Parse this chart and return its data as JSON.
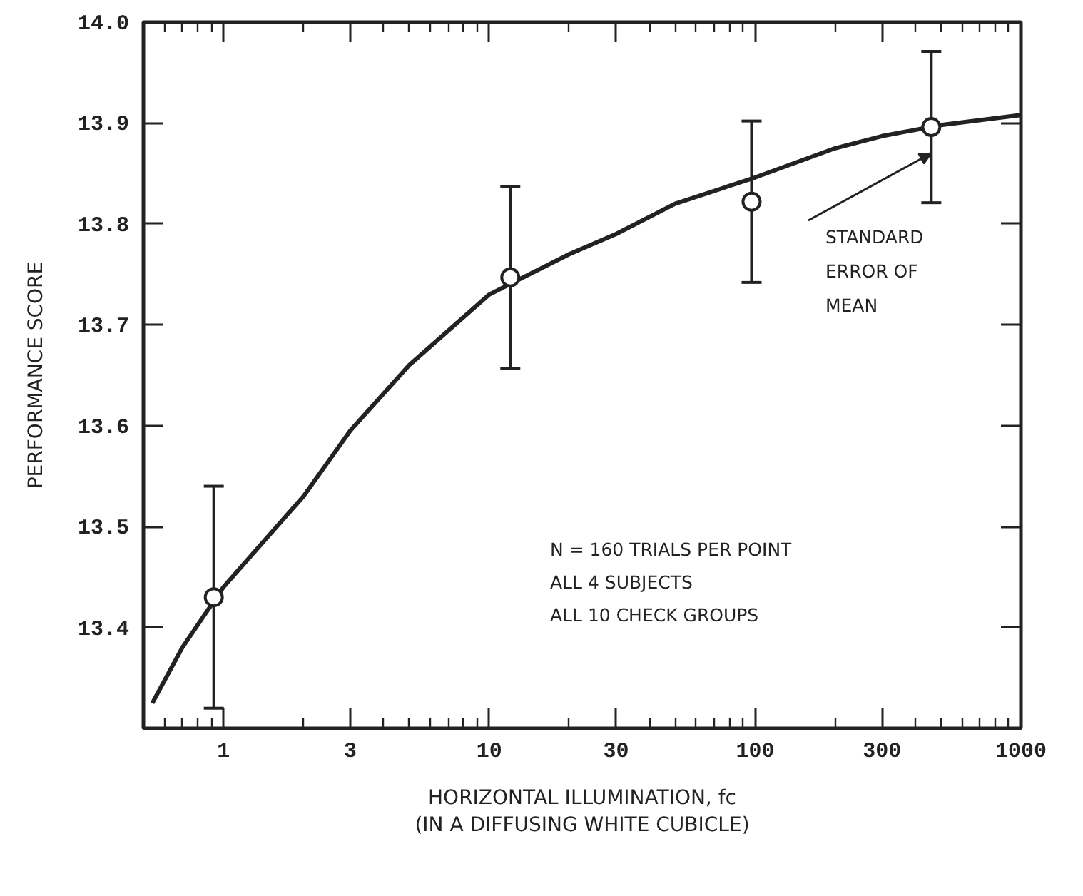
{
  "chart_data": {
    "type": "scatter",
    "xlabel": "HORIZONTAL ILLUMINATION, fc\n(IN A DIFFUSING WHITE CUBICLE)",
    "ylabel": "PERFORMANCE SCORE",
    "log": "x",
    "xlim": [
      0.5,
      1000
    ],
    "ylim": [
      13.3,
      14.0
    ],
    "xticks": [
      {
        "value": 0.6,
        "label": null
      },
      {
        "value": 0.7,
        "label": null
      },
      {
        "value": 0.8,
        "label": null
      },
      {
        "value": 0.9,
        "label": null
      },
      1,
      {
        "value": 2,
        "label": null
      },
      3,
      {
        "value": 4,
        "label": null
      },
      {
        "value": 5,
        "label": null
      },
      {
        "value": 6,
        "label": null
      },
      {
        "value": 7,
        "label": null
      },
      {
        "value": 8,
        "label": null
      },
      {
        "value": 9,
        "label": null
      },
      10,
      {
        "value": 20,
        "label": null
      },
      30,
      {
        "value": 40,
        "label": null
      },
      {
        "value": 50,
        "label": null
      },
      {
        "value": 60,
        "label": null
      },
      {
        "value": 70,
        "label": null
      },
      {
        "value": 80,
        "label": null
      },
      {
        "value": 90,
        "label": null
      },
      100,
      {
        "value": 200,
        "label": null
      },
      300,
      {
        "value": 400,
        "label": null
      },
      {
        "value": 500,
        "label": null
      },
      {
        "value": 600,
        "label": null
      },
      {
        "value": 700,
        "label": null
      },
      {
        "value": 800,
        "label": null
      },
      {
        "value": 900,
        "label": null
      },
      1000
    ],
    "yticks": [
      {
        "value": 13.4,
        "label": "13.4"
      },
      {
        "value": 13.5,
        "label": "13.5"
      },
      {
        "value": 13.6,
        "label": "13.6"
      },
      {
        "value": 13.7,
        "label": "13.7"
      },
      {
        "value": 13.8,
        "label": "13.8"
      },
      {
        "value": 13.9,
        "label": "13.9"
      },
      {
        "value": 14.0,
        "label": "14.0"
      }
    ],
    "grid": false,
    "series": [
      {
        "marker": "circle",
        "color": "#222222",
        "x": [
          0.92,
          12,
          97,
          460
        ],
        "values": [
          13.43,
          13.747,
          13.822,
          13.896
        ],
        "errors": [
          0.11,
          0.09,
          0.08,
          0.075
        ]
      },
      {
        "type": "line",
        "color": "#222222",
        "line_style": "solid",
        "x": [
          0.54,
          0.7,
          1,
          2,
          3,
          5,
          10,
          20,
          30,
          50,
          100,
          200,
          300,
          500,
          1000
        ],
        "values": [
          13.325,
          13.38,
          13.44,
          13.53,
          13.595,
          13.66,
          13.73,
          13.77,
          13.79,
          13.82,
          13.846,
          13.875,
          13.887,
          13.898,
          13.908
        ]
      }
    ],
    "annotations": [
      {
        "text": "STANDARD\nERROR OF\nMEAN",
        "x": 460,
        "y": 13.87
      },
      "N = 160 TRIALS PER POINT",
      "ALL 4 SUBJECTS",
      "ALL 10 CHECK GROUPS"
    ]
  }
}
